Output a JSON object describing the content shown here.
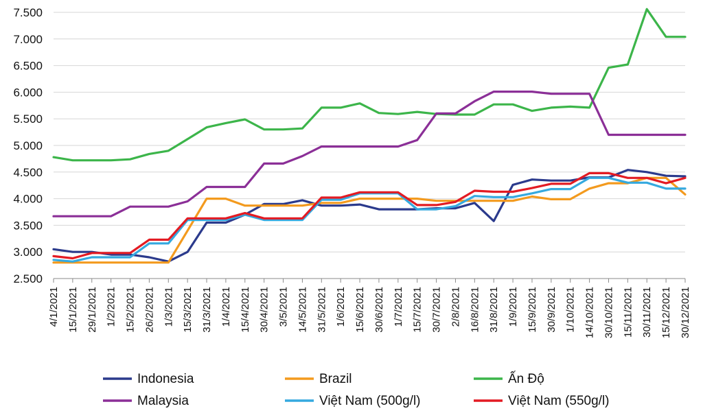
{
  "chart_data": {
    "type": "line",
    "title": "",
    "xlabel": "",
    "ylabel": "",
    "ylim": [
      2500,
      7500
    ],
    "y_ticks": [
      "2.500",
      "3.000",
      "3.500",
      "4.000",
      "4.500",
      "5.000",
      "5.500",
      "6.000",
      "6.500",
      "7.000",
      "7.500"
    ],
    "y_tick_values": [
      2500,
      3000,
      3500,
      4000,
      4500,
      5000,
      5500,
      6000,
      6500,
      7000,
      7500
    ],
    "grid": "horizontal",
    "legend_position": "bottom",
    "x": [
      "4/1/2021",
      "15/1/2021",
      "29/1/2021",
      "1/2/2021",
      "15/2/2021",
      "26/2/2021",
      "1/3/2021",
      "15/3/2021",
      "31/3/2021",
      "1/4/2021",
      "15/4/2021",
      "30/4/2021",
      "3/5/2021",
      "14/5/2021",
      "31/5/2021",
      "1/6/2021",
      "15/6/2021",
      "30/6/2021",
      "1/7/2021",
      "15/7/2021",
      "30/7/2021",
      "2/8/2021",
      "16/8/2021",
      "31/8/2021",
      "1/9/2021",
      "15/9/2021",
      "30/9/2021",
      "1/10/2021",
      "14/10/2021",
      "30/10/2021",
      "15/11/2021",
      "30/11/2021",
      "15/12/2021",
      "30/12/2021"
    ],
    "series": [
      {
        "name": "Indonesia",
        "color": "#2b3a8c",
        "values": [
          3050,
          3000,
          3000,
          2950,
          2950,
          2900,
          2820,
          3000,
          3550,
          3550,
          3700,
          3900,
          3900,
          3970,
          3870,
          3870,
          3890,
          3800,
          3800,
          3800,
          3820,
          3820,
          3920,
          3580,
          4260,
          4360,
          4340,
          4340,
          4400,
          4400,
          4540,
          4500,
          4430,
          4420
        ]
      },
      {
        "name": "Brazil",
        "color": "#f39a1e",
        "values": [
          2800,
          2800,
          2800,
          2800,
          2800,
          2800,
          2800,
          3400,
          4000,
          4000,
          3870,
          3870,
          3870,
          3870,
          3920,
          3920,
          4000,
          4000,
          4000,
          4000,
          3960,
          3960,
          3960,
          3960,
          3960,
          4040,
          3990,
          3990,
          4190,
          4290,
          4290,
          4390,
          4390,
          4080
        ]
      },
      {
        "name": "Ấn Độ",
        "color": "#3cb54a",
        "values": [
          4780,
          4720,
          4720,
          4720,
          4740,
          4840,
          4900,
          5120,
          5340,
          5420,
          5490,
          5300,
          5300,
          5320,
          5710,
          5710,
          5790,
          5610,
          5590,
          5630,
          5590,
          5580,
          5580,
          5770,
          5770,
          5650,
          5710,
          5730,
          5710,
          6460,
          6520,
          7560,
          7040,
          7040
        ]
      },
      {
        "name": "Malaysia",
        "color": "#8b2f97",
        "values": [
          3670,
          3670,
          3670,
          3670,
          3850,
          3850,
          3850,
          3950,
          4220,
          4220,
          4220,
          4660,
          4660,
          4800,
          4980,
          4980,
          4980,
          4980,
          4980,
          5100,
          5600,
          5600,
          5830,
          6010,
          6010,
          6010,
          5970,
          5970,
          5970,
          5200,
          5200,
          5200,
          5200,
          5200
        ]
      },
      {
        "name": "Việt Nam (500g/l)",
        "color": "#35a9df",
        "values": [
          2850,
          2820,
          2900,
          2900,
          2900,
          3160,
          3160,
          3600,
          3600,
          3600,
          3700,
          3600,
          3600,
          3600,
          3980,
          3980,
          4100,
          4100,
          4100,
          3800,
          3800,
          3860,
          4050,
          4030,
          4030,
          4100,
          4180,
          4180,
          4390,
          4390,
          4300,
          4300,
          4190,
          4190
        ]
      },
      {
        "name": "Việt Nam (550g/l)",
        "color": "#e31b23",
        "values": [
          2920,
          2880,
          2980,
          2980,
          2980,
          3230,
          3230,
          3630,
          3630,
          3630,
          3730,
          3630,
          3630,
          3630,
          4020,
          4020,
          4120,
          4120,
          4120,
          3880,
          3880,
          3940,
          4150,
          4130,
          4130,
          4200,
          4280,
          4280,
          4480,
          4480,
          4390,
          4390,
          4290,
          4390
        ]
      }
    ]
  }
}
